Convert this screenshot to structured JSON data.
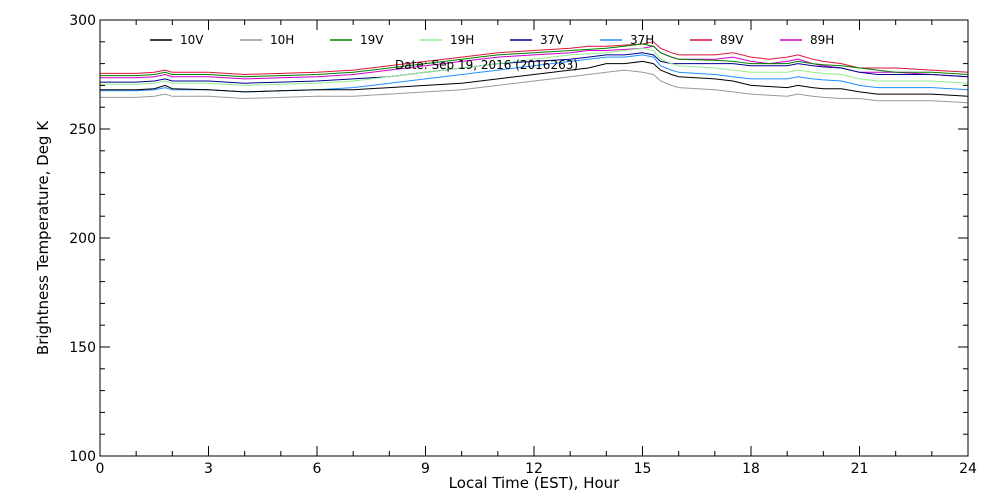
{
  "chart_data": {
    "type": "line",
    "title": "",
    "annotation": "Date: Sep 19, 2016 (2016263)",
    "xlabel": "Local Time (EST), Hour",
    "ylabel": "Brightness Temperature, Deg K",
    "xlim": [
      0,
      24
    ],
    "ylim": [
      100,
      300
    ],
    "xticks": [
      0,
      3,
      6,
      9,
      12,
      15,
      18,
      21,
      24
    ],
    "yticks": [
      100,
      150,
      200,
      250,
      300
    ],
    "x": [
      0,
      1,
      1.5,
      1.8,
      2,
      3,
      4,
      5,
      6,
      7,
      8,
      9,
      10,
      11,
      12,
      13,
      13.5,
      14,
      14.5,
      15,
      15.3,
      15.5,
      15.8,
      16,
      17,
      17.5,
      18,
      18.5,
      19,
      19.3,
      19.7,
      20,
      20.5,
      21,
      21.5,
      22,
      23,
      24
    ],
    "series": [
      {
        "name": "10V",
        "color": "#000000",
        "values": [
          268,
          268,
          268.5,
          270,
          268.5,
          268,
          267,
          267.5,
          268,
          268,
          269,
          270,
          271,
          273,
          275,
          277,
          278,
          280,
          280,
          281,
          280,
          277,
          275,
          274,
          273,
          272,
          270,
          269.5,
          269,
          270,
          269,
          268.5,
          268.5,
          267,
          266,
          266,
          266,
          265
        ]
      },
      {
        "name": "10H",
        "color": "#999999",
        "values": [
          264.5,
          264.5,
          265,
          266,
          265,
          265,
          264,
          264.5,
          265,
          265,
          266,
          267,
          268,
          270,
          272,
          274,
          275,
          276,
          277,
          276,
          275,
          272,
          270,
          269,
          268,
          267,
          266,
          265.5,
          265,
          266,
          265,
          264.5,
          264,
          264,
          263,
          263,
          263,
          262
        ]
      },
      {
        "name": "19V",
        "color": "#008000",
        "values": [
          274.5,
          274.5,
          275,
          276,
          275,
          275,
          274,
          274.5,
          275,
          276,
          278,
          280,
          282,
          284,
          285,
          286,
          286.5,
          287,
          288,
          289,
          288,
          285,
          283,
          282,
          281.5,
          281,
          280,
          280,
          280,
          281,
          280,
          279.5,
          279,
          278,
          277,
          276,
          276,
          275
        ]
      },
      {
        "name": "19H",
        "color": "#90EE90",
        "values": [
          270.5,
          270.5,
          271,
          272,
          271,
          271,
          270,
          270.5,
          271,
          272,
          274,
          276,
          278,
          280,
          282,
          284,
          284.5,
          285,
          286,
          287,
          286,
          282,
          280,
          279,
          278,
          277,
          276,
          276,
          276,
          277,
          276,
          275.5,
          275,
          273,
          272,
          272,
          272,
          271
        ]
      },
      {
        "name": "37V",
        "color": "#00008B",
        "values": [
          271.5,
          271.5,
          272,
          273,
          272,
          272,
          271,
          271.5,
          272,
          273,
          274,
          276,
          278,
          280,
          281,
          282,
          283,
          284,
          284,
          285,
          284,
          281,
          280,
          280,
          280,
          280,
          279,
          279,
          279,
          280,
          279,
          278.5,
          278,
          276,
          275,
          275,
          275,
          274
        ]
      },
      {
        "name": "37H",
        "color": "#1E90FF",
        "values": [
          267.5,
          267.5,
          268,
          269,
          268,
          268,
          267,
          267.5,
          268,
          269,
          271,
          273,
          275,
          277,
          279,
          281,
          282,
          283,
          283,
          284,
          283,
          279,
          277,
          276,
          275,
          274,
          273,
          273,
          273,
          274,
          273,
          272.5,
          272,
          270,
          269,
          269,
          269,
          268
        ]
      },
      {
        "name": "89V",
        "color": "#DC143C",
        "values": [
          275.5,
          275.5,
          276,
          277,
          276,
          276,
          275,
          275.5,
          276,
          277,
          279,
          281,
          283,
          285,
          286,
          287,
          288,
          288,
          288.5,
          289,
          290,
          287,
          285,
          284,
          284,
          285,
          283,
          282,
          283,
          284,
          282,
          281,
          280,
          278,
          278,
          278,
          277,
          276
        ]
      },
      {
        "name": "89H",
        "color": "#CC00CC",
        "values": [
          273.5,
          273.5,
          274,
          275,
          274,
          274,
          273,
          273.5,
          274,
          275,
          277,
          279,
          281,
          283,
          284,
          285,
          286,
          286,
          286.5,
          287,
          288,
          285,
          283,
          282,
          282,
          283,
          281,
          280,
          281,
          282,
          280,
          279,
          278,
          276,
          276,
          276,
          275,
          274
        ]
      }
    ],
    "legend": "top, inside plot, single row"
  }
}
